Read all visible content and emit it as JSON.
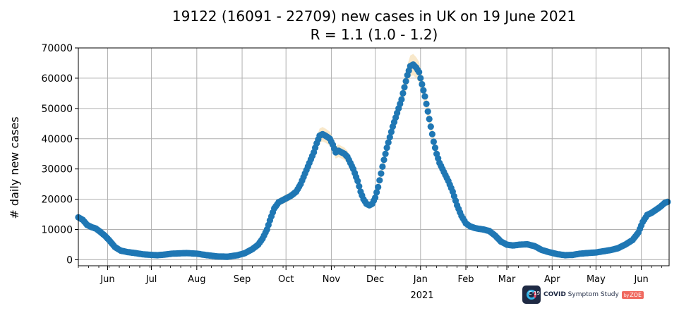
{
  "chart_data": {
    "type": "scatter",
    "title": "19122 (16091 - 22709) new cases in UK on 19 June 2021",
    "subtitle": "R = 1.1 (1.0 - 1.2)",
    "ylabel": "# daily new cases",
    "xlabel": "",
    "ylim": [
      -2000,
      70000
    ],
    "yticks": [
      0,
      10000,
      20000,
      30000,
      40000,
      50000,
      60000,
      70000
    ],
    "xlim": [
      "2020-05-12",
      "2021-06-20"
    ],
    "xtick_labels": [
      {
        "date": "2020-06-01",
        "label": "Jun"
      },
      {
        "date": "2020-07-01",
        "label": "Jul"
      },
      {
        "date": "2020-08-01",
        "label": "Aug"
      },
      {
        "date": "2020-09-01",
        "label": "Sep"
      },
      {
        "date": "2020-10-01",
        "label": "Oct"
      },
      {
        "date": "2020-11-01",
        "label": "Nov"
      },
      {
        "date": "2020-12-01",
        "label": "Dec"
      },
      {
        "date": "2021-01-01",
        "label": "Jan"
      },
      {
        "date": "2021-02-01",
        "label": "Feb"
      },
      {
        "date": "2021-03-01",
        "label": "Mar"
      },
      {
        "date": "2021-04-01",
        "label": "Apr"
      },
      {
        "date": "2021-05-01",
        "label": "May"
      },
      {
        "date": "2021-06-01",
        "label": "Jun"
      }
    ],
    "year_label": "2021",
    "grid": true,
    "marker_color": "#1f77b4",
    "band_color": "#f5deb3",
    "series": [
      {
        "x": [
          "2020-05-12",
          "2020-05-15",
          "2020-05-18",
          "2020-05-21",
          "2020-05-24",
          "2020-05-27",
          "2020-05-30",
          "2020-06-02",
          "2020-06-06",
          "2020-06-10",
          "2020-06-15",
          "2020-06-20",
          "2020-06-25",
          "2020-07-01",
          "2020-07-05",
          "2020-07-10",
          "2020-07-15",
          "2020-07-20",
          "2020-07-25",
          "2020-08-01",
          "2020-08-08",
          "2020-08-15",
          "2020-08-22",
          "2020-08-29",
          "2020-09-03",
          "2020-09-08",
          "2020-09-12",
          "2020-09-15",
          "2020-09-18",
          "2020-09-20",
          "2020-09-23",
          "2020-09-26",
          "2020-09-30",
          "2020-10-04",
          "2020-10-08",
          "2020-10-11",
          "2020-10-14",
          "2020-10-17",
          "2020-10-20",
          "2020-10-22",
          "2020-10-24",
          "2020-10-26",
          "2020-10-28",
          "2020-10-31",
          "2020-11-02",
          "2020-11-04",
          "2020-11-06",
          "2020-11-08",
          "2020-11-10",
          "2020-11-12",
          "2020-11-16",
          "2020-11-19",
          "2020-11-21",
          "2020-11-23",
          "2020-11-25",
          "2020-11-27",
          "2020-11-29",
          "2020-12-01",
          "2020-12-03",
          "2020-12-05",
          "2020-12-07",
          "2020-12-09",
          "2020-12-11",
          "2020-12-13",
          "2020-12-15",
          "2020-12-17",
          "2020-12-19",
          "2020-12-21",
          "2020-12-23",
          "2020-12-25",
          "2020-12-27",
          "2020-12-29",
          "2020-12-31",
          "2021-01-02",
          "2021-01-04",
          "2021-01-06",
          "2021-01-08",
          "2021-01-10",
          "2021-01-12",
          "2021-01-14",
          "2021-01-16",
          "2021-01-18",
          "2021-01-20",
          "2021-01-23",
          "2021-01-26",
          "2021-01-29",
          "2021-02-01",
          "2021-02-04",
          "2021-02-07",
          "2021-02-10",
          "2021-02-13",
          "2021-02-17",
          "2021-02-21",
          "2021-02-25",
          "2021-03-01",
          "2021-03-05",
          "2021-03-10",
          "2021-03-15",
          "2021-03-20",
          "2021-03-25",
          "2021-03-30",
          "2021-04-05",
          "2021-04-10",
          "2021-04-15",
          "2021-04-20",
          "2021-04-25",
          "2021-05-01",
          "2021-05-06",
          "2021-05-11",
          "2021-05-16",
          "2021-05-21",
          "2021-05-26",
          "2021-05-30",
          "2021-06-02",
          "2021-06-05",
          "2021-06-08",
          "2021-06-11",
          "2021-06-14",
          "2021-06-17",
          "2021-06-19"
        ],
        "y": [
          14000,
          13200,
          11500,
          10800,
          10300,
          9200,
          8000,
          6500,
          4200,
          3000,
          2500,
          2200,
          1800,
          1600,
          1500,
          1700,
          2000,
          2100,
          2200,
          2000,
          1500,
          1100,
          1000,
          1500,
          2200,
          3500,
          5000,
          7000,
          10000,
          13000,
          17000,
          19000,
          20000,
          21000,
          22500,
          25000,
          28500,
          32000,
          35500,
          38500,
          41000,
          41500,
          41000,
          40000,
          38000,
          35500,
          36000,
          35500,
          35000,
          34000,
          30000,
          26000,
          22500,
          20000,
          18500,
          18000,
          18500,
          20500,
          24000,
          28500,
          33000,
          37000,
          40500,
          44000,
          47000,
          50000,
          53000,
          57000,
          61000,
          64000,
          64500,
          63500,
          62000,
          58000,
          54000,
          49000,
          44000,
          39000,
          35000,
          32000,
          30000,
          28000,
          26000,
          22500,
          18000,
          14500,
          12000,
          11000,
          10500,
          10200,
          10000,
          9500,
          8000,
          6000,
          5000,
          4700,
          5000,
          5100,
          4500,
          3200,
          2500,
          1800,
          1500,
          1600,
          2000,
          2200,
          2400,
          2800,
          3200,
          3800,
          5000,
          6500,
          9000,
          12500,
          14800,
          15500,
          16500,
          17500,
          18800,
          19122
        ]
      }
    ]
  },
  "brand": {
    "logo_text": "C-19",
    "name_bold": "COVID",
    "name_rest": " Symptom Study",
    "by": "by",
    "company": "ZOE"
  }
}
